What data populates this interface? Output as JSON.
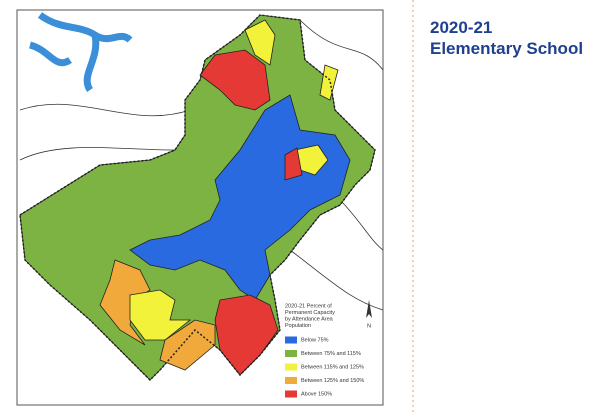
{
  "header": {
    "title_lines": [
      "2020-21",
      "Elementary School"
    ]
  },
  "map": {
    "legend": {
      "title_lines": [
        "2020-21 Percent of",
        "Permanent Capacity",
        "by Attendance Area",
        "Population"
      ],
      "items": [
        {
          "label": "Below 75%",
          "color": "#2a6ae0"
        },
        {
          "label": "Between 75% and 115%",
          "color": "#7cb342"
        },
        {
          "label": "Between 115% and 125%",
          "color": "#f2f23a"
        },
        {
          "label": "Between 125% and 150%",
          "color": "#f2a93b"
        },
        {
          "label": "Above 150%",
          "color": "#e53935"
        }
      ]
    },
    "north_label": "N"
  }
}
